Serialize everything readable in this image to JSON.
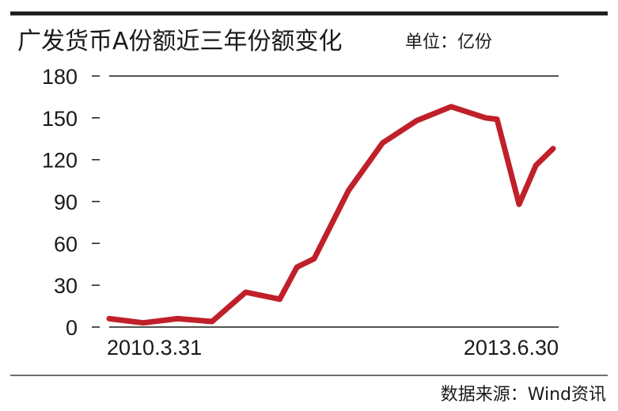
{
  "colors": {
    "line": "#c0202a",
    "rule": "#1a1a1a",
    "text": "#1a1a1a"
  },
  "header": {
    "title": "广发货币A份额近三年份额变化",
    "unit": "单位：亿份"
  },
  "footer": {
    "source": "数据来源：Wind资讯"
  },
  "chart_data": {
    "type": "line",
    "title": "广发货币A份额近三年份额变化",
    "unit_label": "单位：亿份",
    "xlabel": "",
    "ylabel": "",
    "ylim": [
      0,
      180
    ],
    "yticks": [
      "0",
      "30",
      "60",
      "90",
      "120",
      "150",
      "180"
    ],
    "xticks": [
      "2010.3.31",
      "2013.6.30"
    ],
    "x_range": [
      "2010-03-31",
      "2013-06-30"
    ],
    "grid": false,
    "legend": "none",
    "series": [
      {
        "x": [
          "2010-03-31",
          "2010-06-30",
          "2010-09-30",
          "2010-12-31",
          "2011-03-31",
          "2011-06-30",
          "2011-08-15",
          "2011-09-30",
          "2011-12-31",
          "2012-03-31",
          "2012-06-30",
          "2012-09-30",
          "2012-12-31",
          "2013-01-31",
          "2013-03-31",
          "2013-05-15",
          "2013-06-30"
        ],
        "values": [
          6,
          3,
          6,
          4,
          25,
          20,
          43,
          49,
          98,
          132,
          148,
          158,
          150,
          149,
          88,
          116,
          128
        ]
      }
    ]
  }
}
